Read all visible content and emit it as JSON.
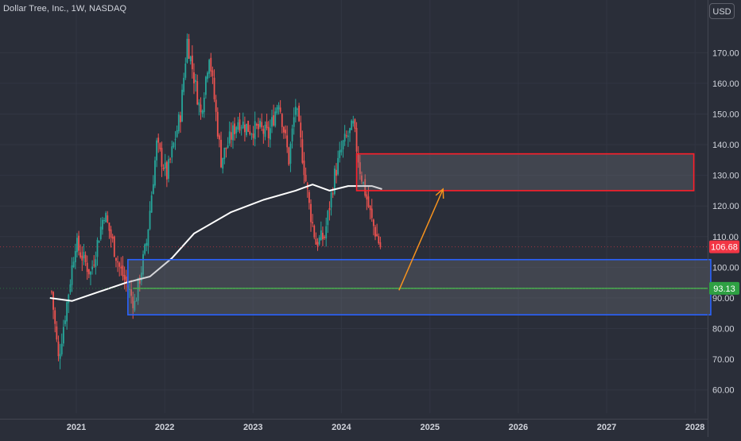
{
  "header": {
    "title": "Dollar Tree, Inc., 1W, NASDAQ",
    "currency_button": "USD"
  },
  "price_labels": {
    "last_price": "106.68",
    "support_level": "93.13"
  },
  "colors": {
    "background": "#2a2e39",
    "grid": "#323643",
    "up": "#26a69a",
    "down": "#ef5350",
    "sma": "#ffffff",
    "resistance_zone": "#ff1f2a",
    "support_zone": "#2962ff",
    "support_line": "#4caf50",
    "projection_arrow": "#f7931e",
    "last_price_badge": "#f23645",
    "support_badge": "#2ea043"
  },
  "chart_data": {
    "type": "candlestick",
    "title": "Dollar Tree, Inc., 1W, NASDAQ",
    "ylim": [
      55,
      182
    ],
    "y_ticks": [
      60,
      70,
      80,
      90,
      100,
      110,
      120,
      130,
      140,
      150,
      160,
      170
    ],
    "x_ticks": [
      "2021",
      "2022",
      "2023",
      "2024",
      "2025",
      "2026",
      "2027",
      "2028"
    ],
    "grid": true,
    "price_anchors": [
      [
        "2020-09-21",
        92
      ],
      [
        "2020-10-19",
        70
      ],
      [
        "2020-11-30",
        92
      ],
      [
        "2020-12-28",
        108
      ],
      [
        "2021-03-01",
        98
      ],
      [
        "2021-04-26",
        118
      ],
      [
        "2021-06-28",
        100
      ],
      [
        "2021-08-30",
        88
      ],
      [
        "2021-10-18",
        108
      ],
      [
        "2021-11-29",
        140
      ],
      [
        "2022-01-10",
        130
      ],
      [
        "2022-03-07",
        150
      ],
      [
        "2022-04-04",
        174
      ],
      [
        "2022-05-30",
        150
      ],
      [
        "2022-07-04",
        170
      ],
      [
        "2022-08-22",
        135
      ],
      [
        "2022-10-31",
        148
      ],
      [
        "2022-12-19",
        145
      ],
      [
        "2023-01-30",
        145
      ],
      [
        "2023-03-06",
        143
      ],
      [
        "2023-04-17",
        155
      ],
      [
        "2023-05-29",
        135
      ],
      [
        "2023-06-26",
        153
      ],
      [
        "2023-08-21",
        120
      ],
      [
        "2023-09-18",
        108
      ],
      [
        "2023-10-23",
        110
      ],
      [
        "2023-12-04",
        130
      ],
      [
        "2024-01-08",
        140
      ],
      [
        "2024-02-19",
        146
      ],
      [
        "2024-03-18",
        132
      ],
      [
        "2024-05-06",
        115
      ],
      [
        "2024-06-10",
        106.68
      ]
    ],
    "series": [
      {
        "name": "",
        "type": "line",
        "points": [
          [
            "2020-09-14",
            90
          ],
          [
            "2020-12-14",
            89
          ],
          [
            "2021-04-05",
            92
          ],
          [
            "2021-07-26",
            95
          ],
          [
            "2021-11-01",
            97
          ],
          [
            "2022-01-31",
            103
          ],
          [
            "2022-05-02",
            111
          ],
          [
            "2022-10-03",
            118
          ],
          [
            "2023-02-13",
            122
          ],
          [
            "2023-06-26",
            125
          ],
          [
            "2023-09-04",
            127
          ],
          [
            "2023-11-13",
            125
          ],
          [
            "2024-01-29",
            126.5
          ],
          [
            "2024-05-06",
            126.5
          ],
          [
            "2024-06-17",
            125.5
          ]
        ]
      }
    ],
    "zones": [
      {
        "name": "resistance",
        "x": [
          "2024-03-04",
          "2027-12-27"
        ],
        "y": [
          125,
          137
        ]
      },
      {
        "name": "support",
        "x": [
          "2021-08-02",
          "2028-03-06"
        ],
        "y": [
          84.5,
          102.5
        ]
      }
    ],
    "horizontal_lines": [
      {
        "name": "support",
        "value": 93.13,
        "x_start": "2021-08-23"
      }
    ],
    "arrows": [
      {
        "from": [
          "2024-08-26",
          92.5
        ],
        "to": [
          "2025-02-24",
          125.5
        ]
      }
    ],
    "last_price": 106.68,
    "support_price": 93.13
  }
}
